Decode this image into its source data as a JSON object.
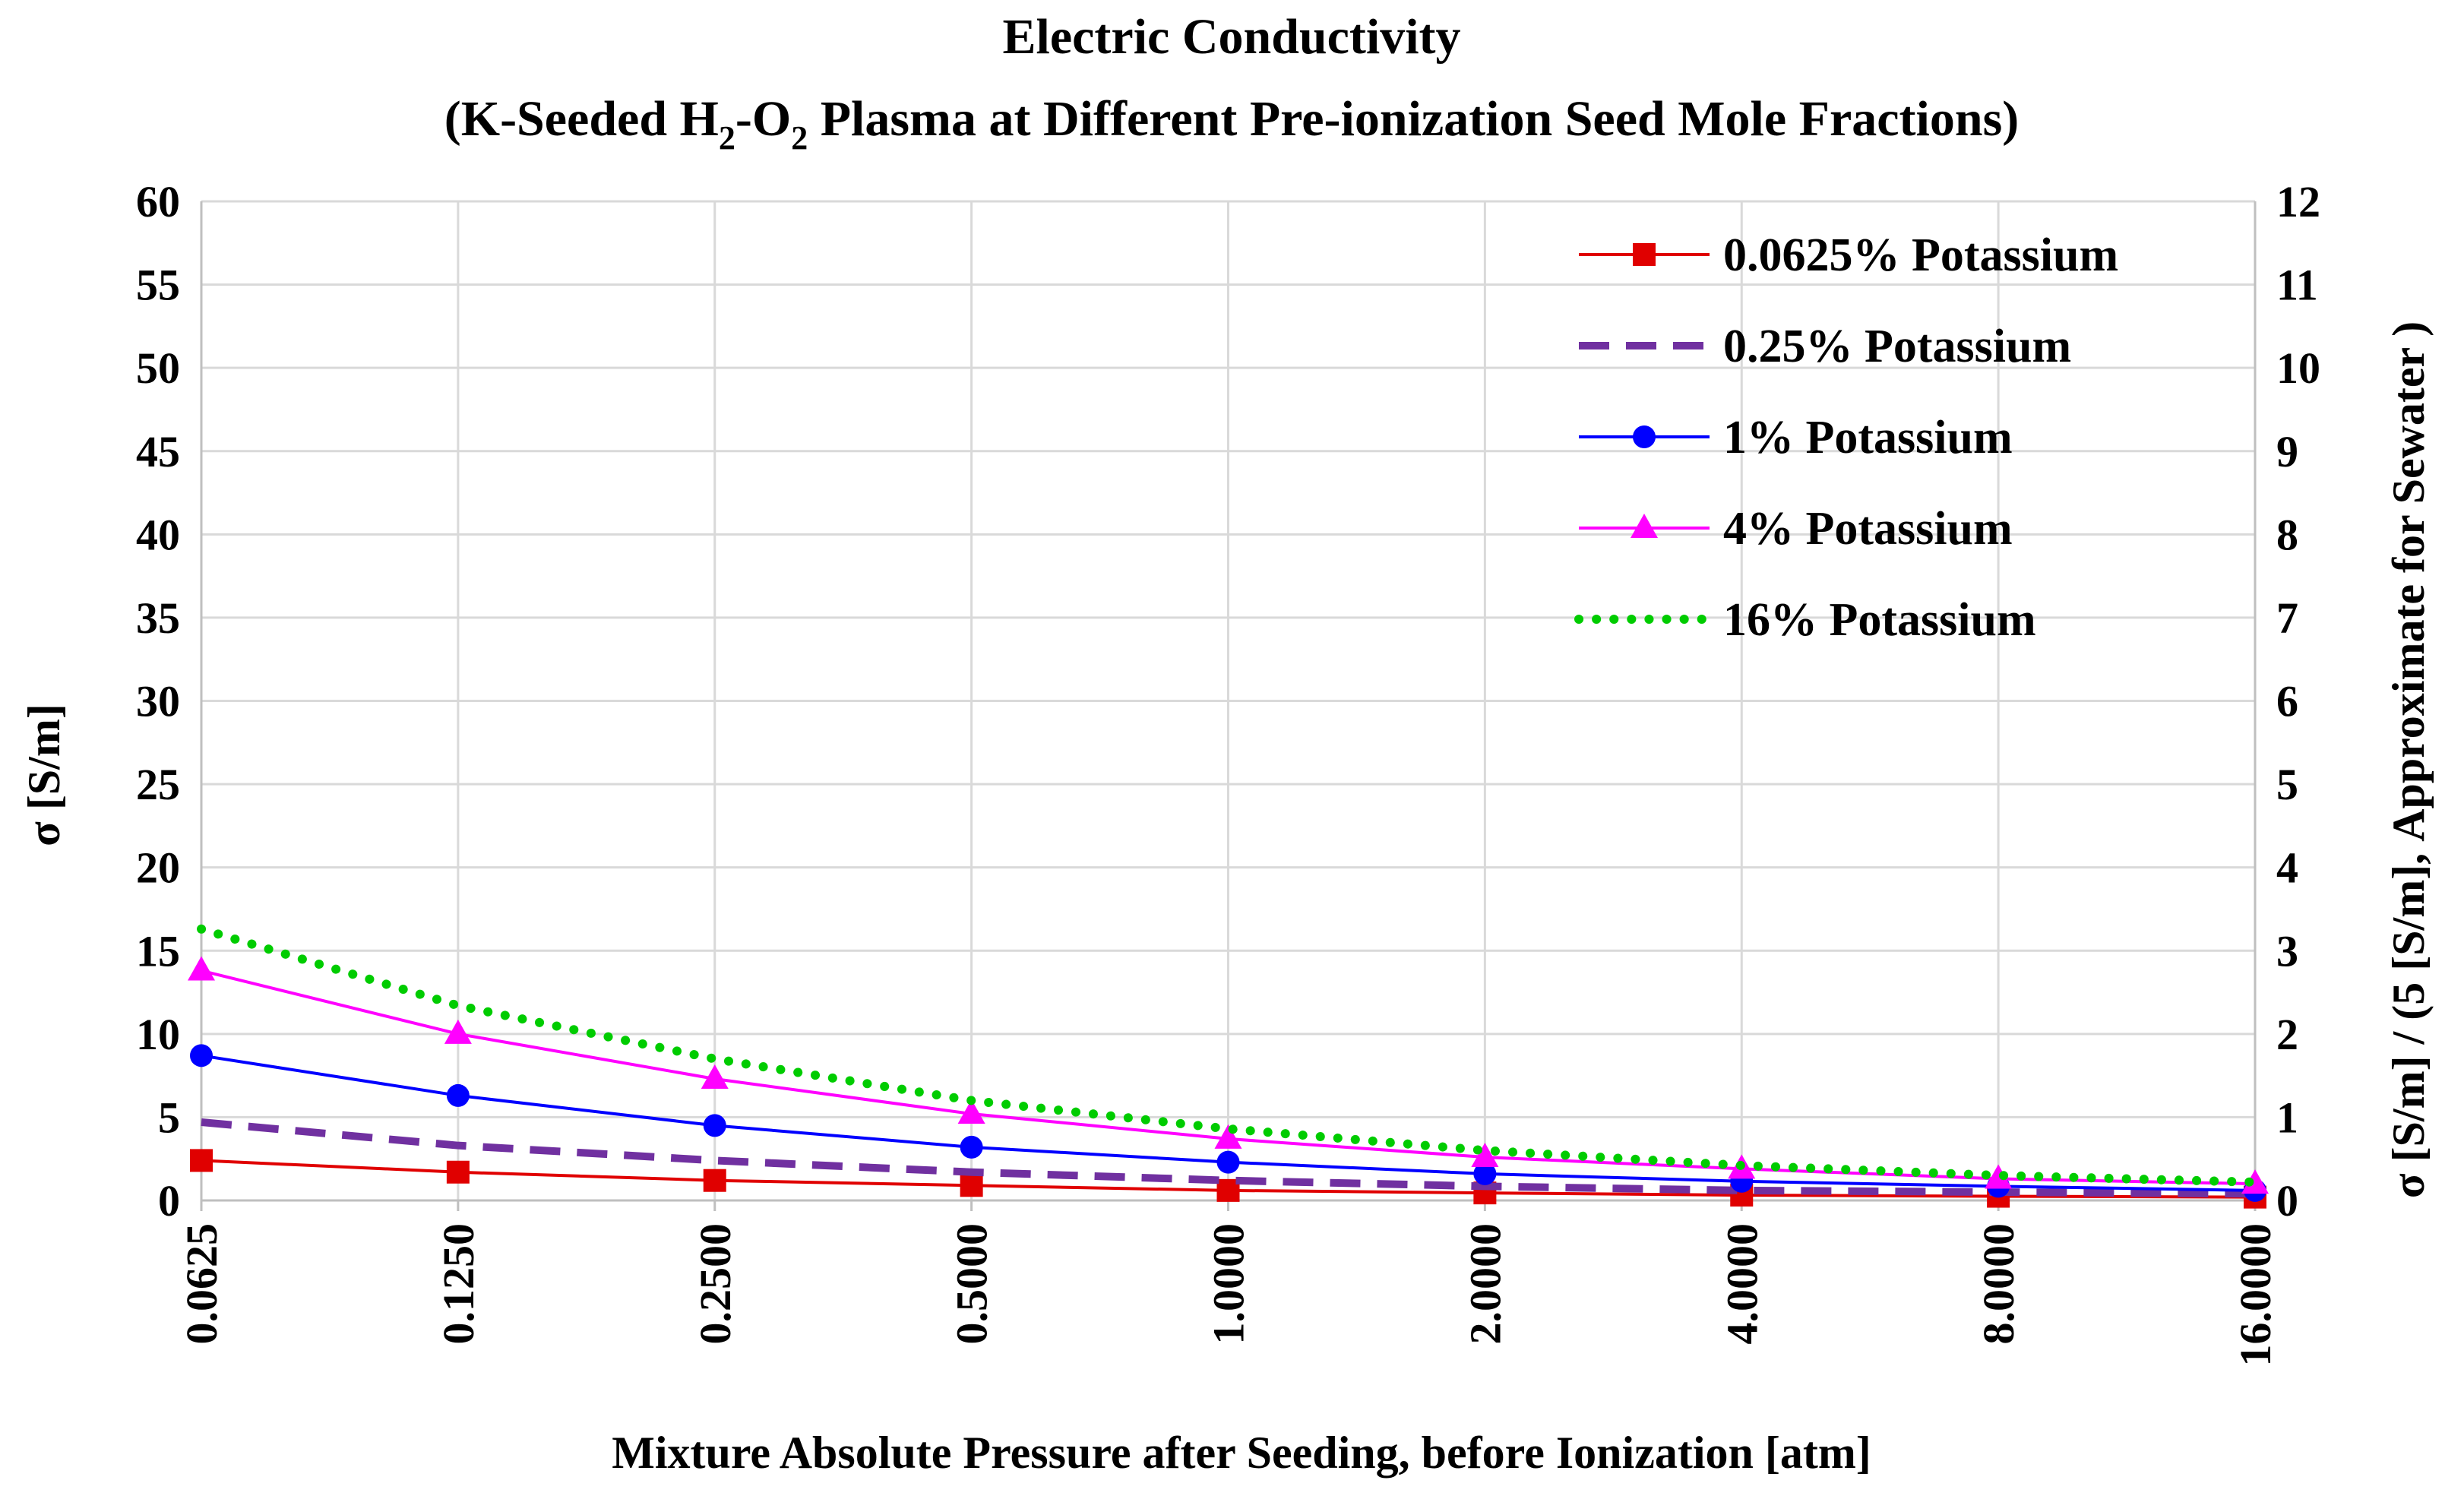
{
  "chart_data": {
    "type": "line",
    "title": "Electric Conductivity",
    "subtitle_parts": {
      "before": "(K-Seeded H",
      "sub1": "2",
      "middle": "-O",
      "sub2": "2",
      "after": " Plasma at Different Pre-ionization Seed Mole Fractions)"
    },
    "xlabel": "Mixture Absolute Pressure after Seeding, before Ionization [atm]",
    "ylabel": "σ [S/m]",
    "y2label": "σ [S/m] / (5 [S/m], Approximate for Sewater )",
    "x_scale": "log2",
    "categories": [
      "0.0625",
      "0.1250",
      "0.2500",
      "0.5000",
      "1.0000",
      "2.0000",
      "4.0000",
      "8.0000",
      "16.0000"
    ],
    "ylim": [
      0,
      60
    ],
    "yticks": [
      "0",
      "5",
      "10",
      "15",
      "20",
      "25",
      "30",
      "35",
      "40",
      "45",
      "50",
      "55",
      "60"
    ],
    "y2lim": [
      0,
      12
    ],
    "y2ticks": [
      "0",
      "1",
      "2",
      "3",
      "4",
      "5",
      "6",
      "7",
      "8",
      "9",
      "10",
      "11",
      "12"
    ],
    "grid": true,
    "legend_position": "top-right",
    "series": [
      {
        "name": "0.0625% Potassium",
        "color": "#e00000",
        "line_style": "solid",
        "marker": "square",
        "values": [
          2.4,
          1.7,
          1.2,
          0.9,
          0.6,
          0.45,
          0.32,
          0.25,
          0.2
        ]
      },
      {
        "name": "0.25% Potassium",
        "color": "#7030a0",
        "line_style": "dashed",
        "marker": "none",
        "values": [
          4.7,
          3.3,
          2.4,
          1.7,
          1.2,
          0.85,
          0.6,
          0.5,
          0.4
        ]
      },
      {
        "name": "1% Potassium",
        "color": "#0000ff",
        "line_style": "solid",
        "marker": "circle",
        "values": [
          8.7,
          6.3,
          4.5,
          3.2,
          2.3,
          1.6,
          1.15,
          0.85,
          0.6
        ]
      },
      {
        "name": "4% Potassium",
        "color": "#ff00ff",
        "line_style": "solid",
        "marker": "triangle",
        "values": [
          13.8,
          10.0,
          7.3,
          5.2,
          3.7,
          2.6,
          1.9,
          1.3,
          1.0
        ]
      },
      {
        "name": "16% Potassium",
        "color": "#00cc00",
        "line_style": "dotted",
        "marker": "none",
        "values": [
          16.3,
          11.7,
          8.5,
          6.0,
          4.3,
          3.0,
          2.1,
          1.5,
          1.1
        ]
      }
    ]
  }
}
